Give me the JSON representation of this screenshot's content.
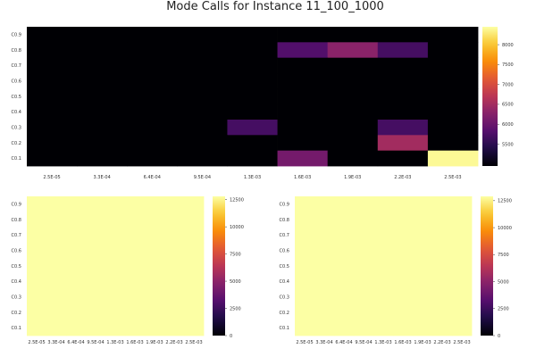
{
  "title": "Mode Calls for Instance 11_100_1000",
  "chart_data": [
    {
      "type": "heatmap",
      "x_categories": [
        "2.5E-05",
        "3.3E-04",
        "6.4E-04",
        "9.5E-04",
        "1.3E-03",
        "1.6E-03",
        "1.9E-03",
        "2.2E-03",
        "2.5E-03"
      ],
      "y_categories": [
        "C0.9",
        "C0.8",
        "C0.7",
        "C0.6",
        "C0.5",
        "C0.4",
        "C0.3",
        "C0.2",
        "C0.1"
      ],
      "values": [
        [
          4950,
          4950,
          4950,
          4950,
          4950,
          4950,
          4950,
          4950,
          4950
        ],
        [
          4950,
          4950,
          4950,
          4950,
          4950,
          5800,
          6300,
          5700,
          4950
        ],
        [
          4950,
          4950,
          4950,
          4950,
          4950,
          4950,
          4950,
          4950,
          4950
        ],
        [
          4950,
          4950,
          4950,
          4950,
          4950,
          4950,
          4950,
          4950,
          4950
        ],
        [
          4950,
          4950,
          4950,
          4950,
          4950,
          4950,
          4950,
          4950,
          4950
        ],
        [
          4950,
          4950,
          4950,
          4950,
          4950,
          4950,
          4950,
          4950,
          4950
        ],
        [
          4950,
          4950,
          4950,
          4950,
          5700,
          4950,
          4950,
          5700,
          4950
        ],
        [
          4950,
          4950,
          4950,
          4950,
          4950,
          4950,
          4950,
          6500,
          4950
        ],
        [
          4950,
          4950,
          4950,
          4950,
          4950,
          6100,
          4950,
          4950,
          8400
        ]
      ],
      "zlim": [
        4950,
        8450
      ],
      "colorbar_ticks": [
        5500,
        6000,
        6500,
        7000,
        7500,
        8000
      ],
      "colorbar_labels": [
        "5500",
        "6000",
        "6500",
        "7000",
        "7500",
        "8000"
      ]
    },
    {
      "type": "heatmap",
      "x_categories": [
        "2.5E-05",
        "3.3E-04",
        "6.4E-04",
        "9.5E-04",
        "1.3E-03",
        "1.6E-03",
        "1.9E-03",
        "2.2E-03",
        "2.5E-03"
      ],
      "y_categories": [
        "C0.9",
        "C0.8",
        "C0.7",
        "C0.6",
        "C0.5",
        "C0.4",
        "C0.3",
        "C0.2",
        "C0.1"
      ],
      "values": [
        [
          12800,
          12800,
          12800,
          12800,
          12800,
          12800,
          12800,
          12800,
          12800
        ],
        [
          12800,
          12800,
          12800,
          12800,
          12800,
          12800,
          12800,
          12800,
          12800
        ],
        [
          12800,
          12800,
          12800,
          12800,
          12800,
          12800,
          12800,
          12800,
          12800
        ],
        [
          12800,
          12800,
          12800,
          12800,
          12800,
          12800,
          12800,
          12800,
          12800
        ],
        [
          12800,
          12800,
          12800,
          12800,
          12800,
          12800,
          12800,
          12800,
          12800
        ],
        [
          12800,
          12800,
          12800,
          12800,
          12800,
          12800,
          12800,
          12800,
          12800
        ],
        [
          12800,
          12800,
          12800,
          12800,
          12800,
          12800,
          12800,
          12800,
          12800
        ],
        [
          12800,
          12800,
          12800,
          12800,
          12800,
          12800,
          12800,
          12800,
          12800
        ],
        [
          12800,
          12800,
          12800,
          12800,
          12800,
          12800,
          12800,
          12800,
          12800
        ]
      ],
      "zlim": [
        0,
        12800
      ],
      "colorbar_ticks": [
        0,
        2500,
        5000,
        7500,
        10000,
        12500
      ],
      "colorbar_labels": [
        "0",
        "2500",
        "5000",
        "7500",
        "10000",
        "12500"
      ]
    },
    {
      "type": "heatmap",
      "x_categories": [
        "2.5E-05",
        "3.3E-04",
        "6.4E-04",
        "9.5E-04",
        "1.3E-03",
        "1.6E-03",
        "1.9E-03",
        "2.2E-03",
        "2.5E-03"
      ],
      "y_categories": [
        "C0.9",
        "C0.8",
        "C0.7",
        "C0.6",
        "C0.5",
        "C0.4",
        "C0.3",
        "C0.2",
        "C0.1"
      ],
      "values": [
        [
          12900,
          12900,
          12900,
          12900,
          12900,
          12900,
          12900,
          12900,
          12900
        ],
        [
          12900,
          12900,
          12900,
          12900,
          12900,
          12900,
          12900,
          12900,
          12900
        ],
        [
          12900,
          12900,
          12900,
          12900,
          12900,
          12900,
          12900,
          12900,
          12900
        ],
        [
          12900,
          12900,
          12900,
          12900,
          12900,
          12900,
          12900,
          12900,
          12900
        ],
        [
          12900,
          12900,
          12900,
          12900,
          12900,
          12900,
          12900,
          12900,
          12900
        ],
        [
          12900,
          12900,
          12900,
          12900,
          12900,
          12900,
          12900,
          12900,
          12900
        ],
        [
          12900,
          12900,
          12900,
          12900,
          12900,
          12900,
          12900,
          12900,
          12900
        ],
        [
          12900,
          12900,
          12900,
          12900,
          12900,
          12900,
          12900,
          12900,
          12900
        ],
        [
          12900,
          12900,
          12900,
          12900,
          12900,
          12900,
          12900,
          12900,
          12900
        ]
      ],
      "zlim": [
        0,
        12900
      ],
      "colorbar_ticks": [
        0,
        2500,
        5000,
        7500,
        10000,
        12500
      ],
      "colorbar_labels": [
        "0",
        "2500",
        "5000",
        "7500",
        "10000",
        "12500"
      ]
    }
  ]
}
